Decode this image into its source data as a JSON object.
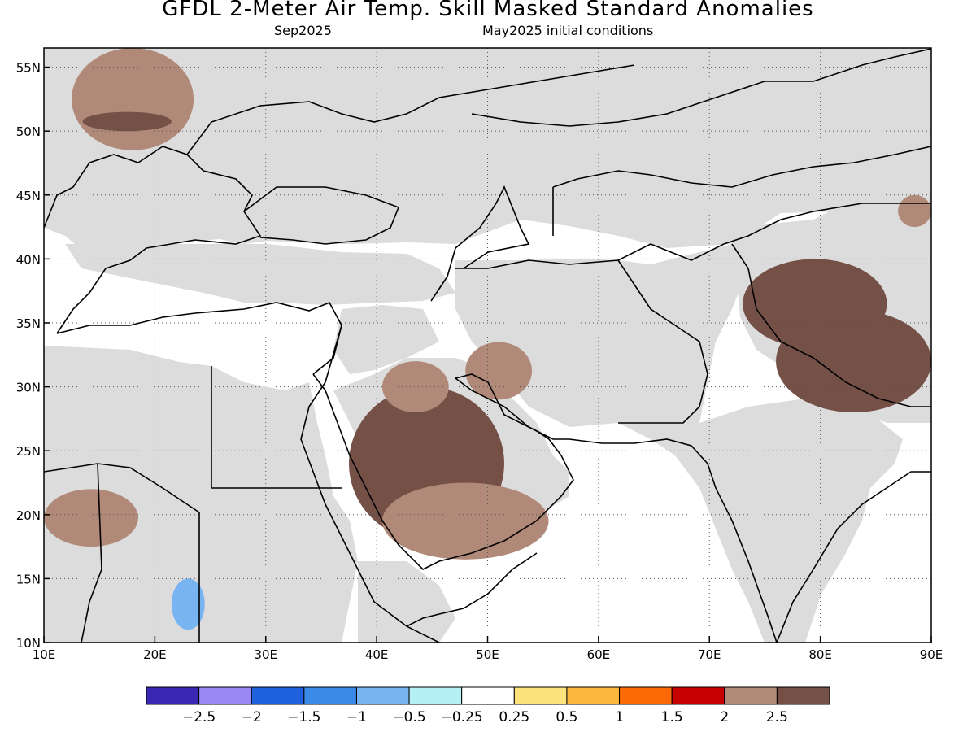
{
  "header": {
    "title": "GFDL 2-Meter Air Temp. Skill Masked Standard Anomalies",
    "valid_month": "Sep2025",
    "init_conditions": "May2025 initial conditions"
  },
  "map": {
    "lon_range": [
      10,
      90
    ],
    "lat_range": [
      10,
      56.5
    ],
    "lon_ticks": [
      {
        "value": 10,
        "label": "10E"
      },
      {
        "value": 20,
        "label": "20E"
      },
      {
        "value": 30,
        "label": "30E"
      },
      {
        "value": 40,
        "label": "40E"
      },
      {
        "value": 50,
        "label": "50E"
      },
      {
        "value": 60,
        "label": "60E"
      },
      {
        "value": 70,
        "label": "70E"
      },
      {
        "value": 80,
        "label": "80E"
      },
      {
        "value": 90,
        "label": "90E"
      }
    ],
    "lat_ticks": [
      {
        "value": 10,
        "label": "10N"
      },
      {
        "value": 15,
        "label": "15N"
      },
      {
        "value": 20,
        "label": "20N"
      },
      {
        "value": 25,
        "label": "25N"
      },
      {
        "value": 30,
        "label": "30N"
      },
      {
        "value": 35,
        "label": "35N"
      },
      {
        "value": 40,
        "label": "40N"
      },
      {
        "value": 45,
        "label": "45N"
      },
      {
        "value": 50,
        "label": "50N"
      },
      {
        "value": 55,
        "label": "55N"
      }
    ],
    "masked_color": "#dcdcdc",
    "anomaly_regions": [
      {
        "name": "Eastern Europe",
        "level": 2,
        "lon": [
          12.5,
          23.5
        ],
        "lat": [
          48.5,
          56.5
        ]
      },
      {
        "name": "Eastern Europe margin",
        "level": 2.5,
        "lon": [
          13.5,
          21.5
        ],
        "lat": [
          50.0,
          51.5
        ]
      },
      {
        "name": "Saudi Arabia",
        "level": 2.5,
        "lon": [
          37.5,
          51.5
        ],
        "lat": [
          18.0,
          30.0
        ]
      },
      {
        "name": "Northern Arabia",
        "level": 2,
        "lon": [
          40.5,
          46.5
        ],
        "lat": [
          28.0,
          32.0
        ]
      },
      {
        "name": "Rub al Khali rim",
        "level": 2,
        "lon": [
          40.5,
          55.5
        ],
        "lat": [
          16.5,
          22.5
        ]
      },
      {
        "name": "Chad",
        "level": 2,
        "lon": [
          10.0,
          18.5
        ],
        "lat": [
          17.5,
          22.0
        ]
      },
      {
        "name": "Southern Iran",
        "level": 2,
        "lon": [
          48.0,
          54.0
        ],
        "lat": [
          29.0,
          33.5
        ]
      },
      {
        "name": "Tibetan Plateau",
        "level": 3,
        "lon": [
          76.0,
          90.0
        ],
        "lat": [
          28.0,
          36.0
        ]
      },
      {
        "name": "Western Tibet",
        "level": 2.5,
        "lon": [
          73.0,
          86.0
        ],
        "lat": [
          33.0,
          40.0
        ]
      },
      {
        "name": "Mongolia edge",
        "level": 2,
        "lon": [
          87.0,
          90.0
        ],
        "lat": [
          42.5,
          45.0
        ]
      },
      {
        "name": "Sudan",
        "level": -1,
        "lon": [
          21.5,
          24.5
        ],
        "lat": [
          11.0,
          15.0
        ]
      }
    ]
  },
  "colorbar": {
    "colors": [
      "#3a28b3",
      "#9a88f5",
      "#1f60dc",
      "#3a8ae8",
      "#78b4f2",
      "#b4f0f4",
      "#ffffff",
      "#fde37c",
      "#fcb73f",
      "#fb6a04",
      "#c70000",
      "#b18978",
      "#755046"
    ],
    "labels": [
      "-2.5",
      "-2",
      "-1.5",
      "-1",
      "-0.5",
      "-0.25",
      "0.25",
      "0.5",
      "1",
      "1.5",
      "2",
      "2.5"
    ]
  }
}
